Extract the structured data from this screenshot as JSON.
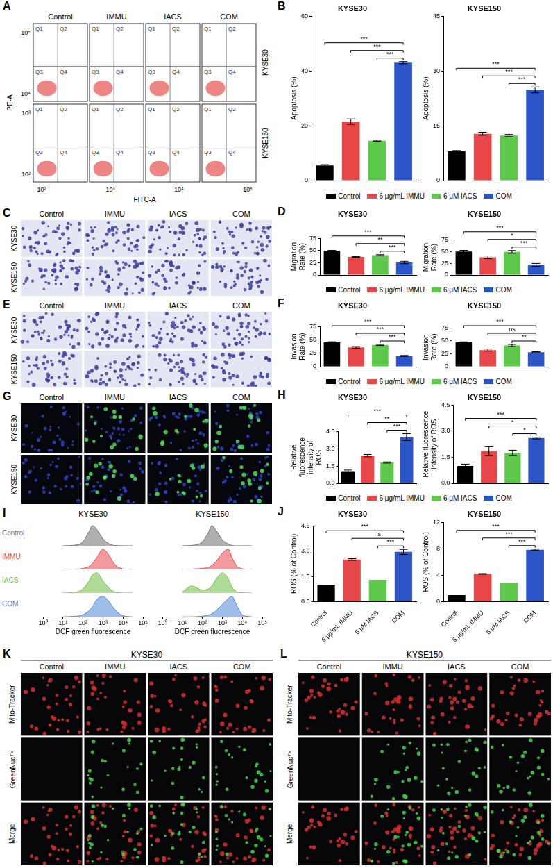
{
  "chart_data": [
    {
      "type": "bar",
      "panel_label": "B",
      "title": "KYSE30",
      "y_label": "Apoptosis (%)",
      "categories": [
        "Control",
        "6 μg/mL IMMU",
        "6 μM IACS",
        "COM"
      ],
      "colors": [
        "#000000",
        "#e8474a",
        "#5dc84a",
        "#2c56c8"
      ],
      "values": [
        5.5,
        21.5,
        14.5,
        43
      ],
      "errors": [
        0.3,
        1.0,
        0.2,
        0.4
      ],
      "ylim": [
        0,
        60
      ],
      "yticks": [
        0,
        20,
        40,
        60
      ],
      "tick_labels": "y",
      "grid": false,
      "legend": "bottom",
      "comparisons": [
        {
          "from": "Control",
          "to": "COM",
          "label": "***"
        },
        {
          "from": "6 μg/mL IMMU",
          "to": "COM",
          "label": "***"
        },
        {
          "from": "6 μM IACS",
          "to": "COM",
          "label": "***"
        }
      ]
    },
    {
      "type": "bar",
      "title": "KYSE150",
      "y_label": "Apoptosis (%)",
      "categories": [
        "Control",
        "6 μg/mL IMMU",
        "6 μM IACS",
        "COM"
      ],
      "colors": [
        "#000000",
        "#e8474a",
        "#5dc84a",
        "#2c56c8"
      ],
      "values": [
        8,
        12.8,
        12.3,
        24.8
      ],
      "errors": [
        0.2,
        0.4,
        0.3,
        0.8
      ],
      "ylim": [
        0,
        45
      ],
      "yticks": [
        0,
        15,
        30,
        45
      ],
      "tick_labels": "y",
      "grid": false,
      "comparisons": [
        {
          "from": "Control",
          "to": "COM",
          "label": "***"
        },
        {
          "from": "6 μg/mL IMMU",
          "to": "COM",
          "label": "***"
        },
        {
          "from": "6 μM IACS",
          "to": "COM",
          "label": "***"
        }
      ]
    },
    {
      "type": "bar",
      "panel_label": "D",
      "title": "KYSE30",
      "y_label": "Migration Rate (%)",
      "categories": [
        "Control",
        "6 μg/mL IMMU",
        "6 μM IACS",
        "COM"
      ],
      "colors": [
        "#000000",
        "#e8474a",
        "#5dc84a",
        "#2c56c8"
      ],
      "values": [
        49,
        37,
        40.5,
        25.5
      ],
      "errors": [
        1.5,
        0.5,
        1.0,
        2.5
      ],
      "ylim": [
        0,
        75
      ],
      "yticks": [
        0,
        25,
        50,
        75
      ],
      "tick_labels": "y",
      "grid": false,
      "legend": "bottom",
      "comparisons": [
        {
          "from": "Control",
          "to": "COM",
          "label": "***"
        },
        {
          "from": "6 μg/mL IMMU",
          "to": "COM",
          "label": "**"
        },
        {
          "from": "6 μM IACS",
          "to": "COM",
          "label": "***"
        }
      ]
    },
    {
      "type": "bar",
      "title": "KYSE150",
      "y_label": "Migration Rate (%)",
      "categories": [
        "Control",
        "6 μg/mL IMMU",
        "6 μM IACS",
        "COM"
      ],
      "colors": [
        "#000000",
        "#e8474a",
        "#5dc84a",
        "#2c56c8"
      ],
      "values": [
        50,
        37.5,
        49,
        21.5
      ],
      "errors": [
        2.5,
        3,
        3,
        3
      ],
      "ylim": [
        0,
        75
      ],
      "yticks": [
        0,
        25,
        50,
        75
      ],
      "tick_labels": "y",
      "grid": false,
      "comparisons": [
        {
          "from": "Control",
          "to": "COM",
          "label": "***"
        },
        {
          "from": "6 μg/mL IMMU",
          "to": "COM",
          "label": "*"
        },
        {
          "from": "6 μM IACS",
          "to": "COM",
          "label": "***"
        }
      ]
    },
    {
      "type": "bar",
      "panel_label": "F",
      "title": "KYSE30",
      "y_label": "Invasion Rate (%)",
      "categories": [
        "Control",
        "6 μg/mL IMMU",
        "6 μM IACS",
        "COM"
      ],
      "colors": [
        "#000000",
        "#e8474a",
        "#5dc84a",
        "#2c56c8"
      ],
      "values": [
        45.5,
        36,
        40.5,
        20
      ],
      "errors": [
        1,
        1.5,
        1,
        1
      ],
      "ylim": [
        0,
        75
      ],
      "yticks": [
        0,
        25,
        50,
        75
      ],
      "tick_labels": "y",
      "grid": false,
      "legend": "bottom",
      "comparisons": [
        {
          "from": "Control",
          "to": "COM",
          "label": "***"
        },
        {
          "from": "6 μg/mL IMMU",
          "to": "COM",
          "label": "***"
        },
        {
          "from": "6 μM IACS",
          "to": "COM",
          "label": "***"
        }
      ]
    },
    {
      "type": "bar",
      "title": "KYSE150",
      "y_label": "Invasion Rate (%)",
      "categories": [
        "Control",
        "6 μg/mL IMMU",
        "6 μM IACS",
        "COM"
      ],
      "colors": [
        "#000000",
        "#e8474a",
        "#5dc84a",
        "#2c56c8"
      ],
      "values": [
        47,
        32,
        41,
        28
      ],
      "errors": [
        1,
        2,
        2,
        1
      ],
      "ylim": [
        0,
        75
      ],
      "yticks": [
        0,
        25,
        50,
        75
      ],
      "tick_labels": "y",
      "grid": false,
      "comparisons": [
        {
          "from": "Control",
          "to": "COM",
          "label": "***"
        },
        {
          "from": "6 μg/mL IMMU",
          "to": "COM",
          "label": "ns"
        },
        {
          "from": "6 μM IACS",
          "to": "COM",
          "label": "**"
        }
      ]
    },
    {
      "type": "bar",
      "panel_label": "H",
      "title": "KYSE30",
      "y_label": "Relative fluorescence intensity of ROS",
      "categories": [
        "Control",
        "6 μg/mL IMMU",
        "6 μM IACS",
        "COM"
      ],
      "colors": [
        "#000000",
        "#e8474a",
        "#5dc84a",
        "#2c56c8"
      ],
      "values": [
        1.0,
        2.4,
        1.8,
        4.0
      ],
      "errors": [
        0.15,
        0.1,
        0.05,
        0.3
      ],
      "ylim": [
        0,
        4.5
      ],
      "yticks": [
        {
          "value": 0,
          "label": "0.0"
        },
        1.5,
        {
          "value": 3,
          "label": "3.0"
        },
        4.5
      ],
      "tick_labels": "y",
      "grid": false,
      "legend": "bottom",
      "comparisons": [
        {
          "from": "Control",
          "to": "COM",
          "label": "***"
        },
        {
          "from": "6 μg/mL IMMU",
          "to": "COM",
          "label": "**"
        },
        {
          "from": "6 μM IACS",
          "to": "COM",
          "label": "***"
        }
      ]
    },
    {
      "type": "bar",
      "title": "KYSE150",
      "y_label": "Relative fluorescence intensity of ROS",
      "categories": [
        "Control",
        "6 μg/mL IMMU",
        "6 μM IACS",
        "COM"
      ],
      "colors": [
        "#000000",
        "#e8474a",
        "#5dc84a",
        "#2c56c8"
      ],
      "values": [
        1.0,
        1.85,
        1.75,
        2.6
      ],
      "errors": [
        0.1,
        0.25,
        0.15,
        0.05
      ],
      "ylim": [
        0,
        4.5
      ],
      "yticks": [
        {
          "value": 0,
          "label": "0.0"
        },
        1.5,
        {
          "value": 3,
          "label": "3.0"
        },
        4.5
      ],
      "tick_labels": "y",
      "grid": false,
      "comparisons": [
        {
          "from": "Control",
          "to": "COM",
          "label": "***"
        },
        {
          "from": "6 μg/mL IMMU",
          "to": "COM",
          "label": "*"
        },
        {
          "from": "6 μM IACS",
          "to": "COM",
          "label": "*"
        }
      ]
    },
    {
      "type": "bar",
      "panel_label": "J",
      "title": "KYSE30",
      "y_label": "ROS (% of Control)",
      "categories": [
        "Control",
        "6 μg/mL IMMU",
        "6 μM IACS",
        "COM"
      ],
      "colors": [
        "#000000",
        "#e8474a",
        "#5dc84a",
        "#2c56c8"
      ],
      "values": [
        1.0,
        2.5,
        1.3,
        2.95
      ],
      "errors": [
        0,
        0.05,
        0,
        0.15
      ],
      "ylim": [
        0,
        4.5
      ],
      "yticks": [
        {
          "value": 0,
          "label": "0.0"
        },
        1.5,
        {
          "value": 3,
          "label": "3.0"
        },
        4.5
      ],
      "tick_labels": true,
      "grid": false,
      "comparisons": [
        {
          "from": "Control",
          "to": "COM",
          "label": "***"
        },
        {
          "from": "6 μg/mL IMMU",
          "to": "COM",
          "label": "ns"
        },
        {
          "from": "6 μM IACS",
          "to": "COM",
          "label": "***"
        }
      ]
    },
    {
      "type": "bar",
      "title": "KYSE150",
      "y_label": "ROS (% of Control)",
      "categories": [
        "Control",
        "6 μg/mL IMMU",
        "6 μM IACS",
        "COM"
      ],
      "colors": [
        "#000000",
        "#e8474a",
        "#5dc84a",
        "#2c56c8"
      ],
      "values": [
        1.0,
        4.2,
        2.85,
        7.85
      ],
      "errors": [
        0,
        0.05,
        0,
        0.1
      ],
      "ylim": [
        0,
        12
      ],
      "yticks": [
        0,
        4,
        8,
        12
      ],
      "tick_labels": true,
      "grid": false,
      "comparisons": [
        {
          "from": "Control",
          "to": "COM",
          "label": "***"
        },
        {
          "from": "6 μg/mL IMMU",
          "to": "COM",
          "label": "***"
        },
        {
          "from": "6 μM IACS",
          "to": "COM",
          "label": "***"
        }
      ]
    },
    {
      "type": "area",
      "panel_label": "I",
      "columns": [
        "KYSE30",
        "KYSE150"
      ],
      "x_label": "DCF green fluorescence",
      "log": "x",
      "x": [
        10,
        30,
        100,
        200,
        300,
        500,
        1000,
        2000,
        3000,
        5000,
        10000,
        30000
      ],
      "xlim": [
        1,
        100000
      ],
      "xticks": [
        {
          "value": 1,
          "label": "10⁰"
        },
        {
          "value": 10,
          "label": "10¹"
        },
        {
          "value": 100,
          "label": "10²"
        },
        {
          "value": 1000,
          "label": "10³"
        },
        {
          "value": 10000,
          "label": "10⁴"
        },
        {
          "value": 100000,
          "label": "10⁵"
        }
      ],
      "ylim": [
        0,
        1.1
      ],
      "tick_labels": "x",
      "grid": false,
      "series": [
        {
          "name": "Control",
          "color": "#6e6e6e",
          "values": [
            [
              0,
              0.02,
              0.2,
              0.7,
              1.0,
              0.8,
              0.35,
              0.1,
              0.03,
              0.01,
              0,
              0
            ],
            [
              0,
              0.02,
              0.2,
              0.65,
              1.0,
              0.75,
              0.3,
              0.08,
              0.02,
              0,
              0,
              0
            ]
          ]
        },
        {
          "name": "IMMU",
          "color": "#e8474a",
          "values": [
            [
              0,
              0,
              0.05,
              0.15,
              0.3,
              0.6,
              1.0,
              0.7,
              0.4,
              0.15,
              0.03,
              0
            ],
            [
              0,
              0.02,
              0.05,
              0.1,
              0.2,
              0.4,
              0.8,
              1.0,
              0.6,
              0.2,
              0.03,
              0
            ]
          ]
        },
        {
          "name": "IACS",
          "color": "#6cc040",
          "values": [
            [
              0,
              0.02,
              0.2,
              0.6,
              0.9,
              1.0,
              0.6,
              0.25,
              0.1,
              0.03,
              0,
              0
            ],
            [
              0.05,
              0.35,
              0.15,
              0.2,
              0.35,
              0.7,
              1.0,
              0.7,
              0.3,
              0.08,
              0.01,
              0
            ]
          ]
        },
        {
          "name": "COM",
          "color": "#4f86d6",
          "values": [
            [
              0,
              0.02,
              0.1,
              0.3,
              0.5,
              0.85,
              1.0,
              0.75,
              0.5,
              0.25,
              0.05,
              0
            ],
            [
              0,
              0,
              0.03,
              0.08,
              0.15,
              0.3,
              0.6,
              0.9,
              1.0,
              0.6,
              0.1,
              0
            ]
          ]
        }
      ]
    }
  ],
  "image_panels": [
    {
      "panel_label": "A",
      "columns": [
        "Control",
        "IMMU",
        "IACS",
        "COM"
      ],
      "rows": [
        "KYSE30",
        "KYSE150"
      ],
      "y_label": "PE-A",
      "x_label": "FITC-A",
      "row_yticks": [
        [
          "10⁵",
          "10⁴"
        ],
        [
          "10³",
          "10²"
        ]
      ],
      "xticks": [
        "10²",
        "10³",
        "10⁴",
        "10⁵"
      ],
      "quadrants": [
        "Q1",
        "Q2",
        "Q3",
        "Q4"
      ]
    },
    {
      "panel_label": "C",
      "columns": [
        "Control",
        "IMMU",
        "IACS",
        "COM"
      ],
      "rows": [
        "KYSE30",
        "KYSE150"
      ]
    },
    {
      "panel_label": "E",
      "columns": [
        "Control",
        "IMMU",
        "IACS",
        "COM"
      ],
      "rows": [
        "KYSE30",
        "KYSE150"
      ]
    },
    {
      "panel_label": "G",
      "columns": [
        "Control",
        "IMMU",
        "IACS",
        "COM"
      ],
      "rows": [
        "KYSE30",
        "KYSE150"
      ]
    },
    {
      "panel_label": "K",
      "title": "KYSE30",
      "columns": [
        "Control",
        "IMMU",
        "IACS",
        "COM"
      ],
      "rows": [
        "Mito-Tracker",
        "GreenNuc™",
        "Merge"
      ]
    },
    {
      "panel_label": "L",
      "title": "KYSE150",
      "columns": [
        "Control",
        "IMMU",
        "IACS",
        "COM"
      ],
      "rows": [
        "Mito-Tracker",
        "GreenNuc™",
        "Merge"
      ]
    }
  ]
}
